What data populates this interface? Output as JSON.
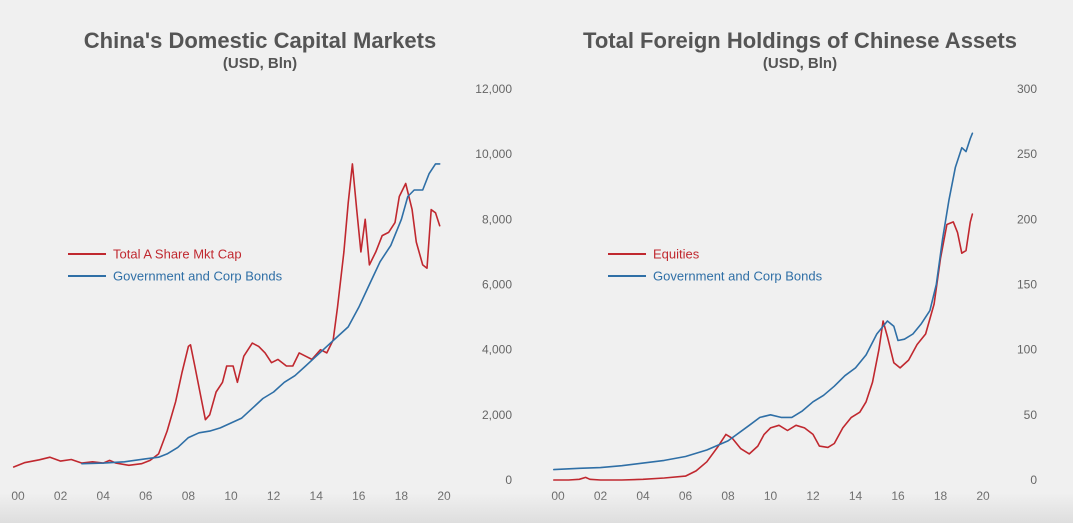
{
  "colors": {
    "red": "#c0282f",
    "blue": "#2f6fa6",
    "text": "#555555",
    "tick": "#666666"
  },
  "chart_data": [
    {
      "type": "line",
      "title": "China's Domestic Capital Markets",
      "subtitle": "(USD, Bln)",
      "xlabel": "",
      "ylabel": "",
      "xlim": [
        0,
        20
      ],
      "ylim": [
        0,
        12000
      ],
      "x_ticks": [
        "00",
        "02",
        "04",
        "06",
        "08",
        "10",
        "12",
        "14",
        "16",
        "18",
        "20"
      ],
      "y_ticks": [
        "0",
        "2,000",
        "4,000",
        "6,000",
        "8,000",
        "10,000",
        "12,000"
      ],
      "y_axis_side": "right",
      "legend_position": "middle-left",
      "grid": false,
      "series": [
        {
          "name": "Total A Share Mkt Cap",
          "color": "#c0282f",
          "points": [
            [
              -0.2,
              400
            ],
            [
              0.3,
              530
            ],
            [
              1,
              620
            ],
            [
              1.5,
              700
            ],
            [
              2,
              580
            ],
            [
              2.5,
              630
            ],
            [
              3,
              520
            ],
            [
              3.5,
              560
            ],
            [
              4,
              520
            ],
            [
              4.3,
              600
            ],
            [
              4.6,
              520
            ],
            [
              5.2,
              450
            ],
            [
              5.8,
              500
            ],
            [
              6.2,
              600
            ],
            [
              6.6,
              800
            ],
            [
              7,
              1500
            ],
            [
              7.4,
              2400
            ],
            [
              7.7,
              3300
            ],
            [
              8,
              4100
            ],
            [
              8.1,
              4150
            ],
            [
              8.3,
              3500
            ],
            [
              8.6,
              2500
            ],
            [
              8.8,
              1850
            ],
            [
              9,
              2000
            ],
            [
              9.3,
              2700
            ],
            [
              9.6,
              3000
            ],
            [
              9.8,
              3500
            ],
            [
              10.1,
              3500
            ],
            [
              10.3,
              3000
            ],
            [
              10.6,
              3800
            ],
            [
              11,
              4200
            ],
            [
              11.3,
              4100
            ],
            [
              11.6,
              3900
            ],
            [
              11.9,
              3600
            ],
            [
              12.2,
              3700
            ],
            [
              12.6,
              3500
            ],
            [
              12.9,
              3500
            ],
            [
              13.2,
              3900
            ],
            [
              13.5,
              3800
            ],
            [
              13.8,
              3700
            ],
            [
              14.2,
              4000
            ],
            [
              14.5,
              3900
            ],
            [
              14.8,
              4300
            ],
            [
              15,
              5300
            ],
            [
              15.3,
              7000
            ],
            [
              15.5,
              8500
            ],
            [
              15.7,
              9700
            ],
            [
              15.9,
              8300
            ],
            [
              16.1,
              7000
            ],
            [
              16.3,
              8000
            ],
            [
              16.5,
              6600
            ],
            [
              16.8,
              7000
            ],
            [
              17.1,
              7500
            ],
            [
              17.4,
              7600
            ],
            [
              17.7,
              7900
            ],
            [
              17.9,
              8700
            ],
            [
              18.2,
              9100
            ],
            [
              18.5,
              8300
            ],
            [
              18.7,
              7300
            ],
            [
              19,
              6600
            ],
            [
              19.2,
              6500
            ],
            [
              19.4,
              8300
            ],
            [
              19.6,
              8200
            ],
            [
              19.8,
              7800
            ]
          ]
        },
        {
          "name": "Government and Corp Bonds",
          "color": "#2f6fa6",
          "points": [
            [
              3,
              500
            ],
            [
              4,
              520
            ],
            [
              5,
              560
            ],
            [
              6,
              650
            ],
            [
              6.6,
              700
            ],
            [
              7,
              800
            ],
            [
              7.5,
              1000
            ],
            [
              8,
              1300
            ],
            [
              8.5,
              1450
            ],
            [
              9,
              1500
            ],
            [
              9.5,
              1600
            ],
            [
              10,
              1750
            ],
            [
              10.5,
              1900
            ],
            [
              11,
              2200
            ],
            [
              11.5,
              2500
            ],
            [
              12,
              2700
            ],
            [
              12.5,
              3000
            ],
            [
              13,
              3200
            ],
            [
              13.5,
              3500
            ],
            [
              14,
              3800
            ],
            [
              14.5,
              4100
            ],
            [
              15,
              4400
            ],
            [
              15.5,
              4700
            ],
            [
              16,
              5300
            ],
            [
              16.5,
              6000
            ],
            [
              17,
              6700
            ],
            [
              17.5,
              7200
            ],
            [
              18,
              8000
            ],
            [
              18.3,
              8700
            ],
            [
              18.6,
              8900
            ],
            [
              19,
              8900
            ],
            [
              19.3,
              9400
            ],
            [
              19.6,
              9700
            ],
            [
              19.8,
              9700
            ]
          ]
        }
      ]
    },
    {
      "type": "line",
      "title": "Total Foreign Holdings of Chinese Assets",
      "subtitle": "(USD, Bln)",
      "xlabel": "",
      "ylabel": "",
      "xlim": [
        0,
        20
      ],
      "ylim": [
        0,
        300
      ],
      "x_ticks": [
        "00",
        "02",
        "04",
        "06",
        "08",
        "10",
        "12",
        "14",
        "16",
        "18",
        "20"
      ],
      "y_ticks": [
        "0",
        "50",
        "100",
        "150",
        "200",
        "250",
        "300"
      ],
      "y_axis_side": "right",
      "legend_position": "middle-left",
      "grid": false,
      "series": [
        {
          "name": "Equities",
          "color": "#c0282f",
          "points": [
            [
              -0.2,
              0
            ],
            [
              0.5,
              0
            ],
            [
              1,
              0.5
            ],
            [
              1.3,
              2
            ],
            [
              1.5,
              0.5
            ],
            [
              2,
              0
            ],
            [
              3,
              0
            ],
            [
              4,
              0.5
            ],
            [
              5,
              1.5
            ],
            [
              6,
              3
            ],
            [
              6.5,
              7
            ],
            [
              7,
              14
            ],
            [
              7.5,
              25
            ],
            [
              7.9,
              35
            ],
            [
              8.2,
              32
            ],
            [
              8.6,
              24
            ],
            [
              9,
              20
            ],
            [
              9.4,
              26
            ],
            [
              9.7,
              35
            ],
            [
              10,
              40
            ],
            [
              10.4,
              42
            ],
            [
              10.8,
              38
            ],
            [
              11.2,
              42
            ],
            [
              11.6,
              40
            ],
            [
              12,
              35
            ],
            [
              12.3,
              26
            ],
            [
              12.7,
              25
            ],
            [
              13,
              28
            ],
            [
              13.4,
              40
            ],
            [
              13.8,
              48
            ],
            [
              14.2,
              52
            ],
            [
              14.5,
              60
            ],
            [
              14.8,
              75
            ],
            [
              15.1,
              100
            ],
            [
              15.3,
              122
            ],
            [
              15.5,
              110
            ],
            [
              15.8,
              90
            ],
            [
              16.1,
              86
            ],
            [
              16.5,
              92
            ],
            [
              16.9,
              104
            ],
            [
              17.3,
              112
            ],
            [
              17.7,
              135
            ],
            [
              18,
              170
            ],
            [
              18.3,
              196
            ],
            [
              18.6,
              198
            ],
            [
              18.8,
              190
            ],
            [
              19,
              174
            ],
            [
              19.2,
              176
            ],
            [
              19.4,
              198
            ],
            [
              19.5,
              204
            ]
          ]
        },
        {
          "name": "Government and Corp Bonds",
          "color": "#2f6fa6",
          "points": [
            [
              -0.2,
              8
            ],
            [
              1,
              9
            ],
            [
              2,
              9.5
            ],
            [
              3,
              11
            ],
            [
              4,
              13
            ],
            [
              5,
              15
            ],
            [
              6,
              18
            ],
            [
              7,
              23
            ],
            [
              8,
              30
            ],
            [
              9,
              42
            ],
            [
              9.5,
              48
            ],
            [
              10,
              50
            ],
            [
              10.5,
              48
            ],
            [
              11,
              48
            ],
            [
              11.5,
              53
            ],
            [
              12,
              60
            ],
            [
              12.5,
              65
            ],
            [
              13,
              72
            ],
            [
              13.5,
              80
            ],
            [
              14,
              86
            ],
            [
              14.5,
              96
            ],
            [
              15,
              112
            ],
            [
              15.5,
              122
            ],
            [
              15.8,
              118
            ],
            [
              16,
              107
            ],
            [
              16.3,
              108
            ],
            [
              16.7,
              112
            ],
            [
              17.1,
              120
            ],
            [
              17.5,
              130
            ],
            [
              17.8,
              150
            ],
            [
              18.1,
              185
            ],
            [
              18.4,
              215
            ],
            [
              18.7,
              240
            ],
            [
              19,
              255
            ],
            [
              19.2,
              252
            ],
            [
              19.4,
              262
            ],
            [
              19.5,
              266
            ]
          ]
        }
      ]
    }
  ]
}
